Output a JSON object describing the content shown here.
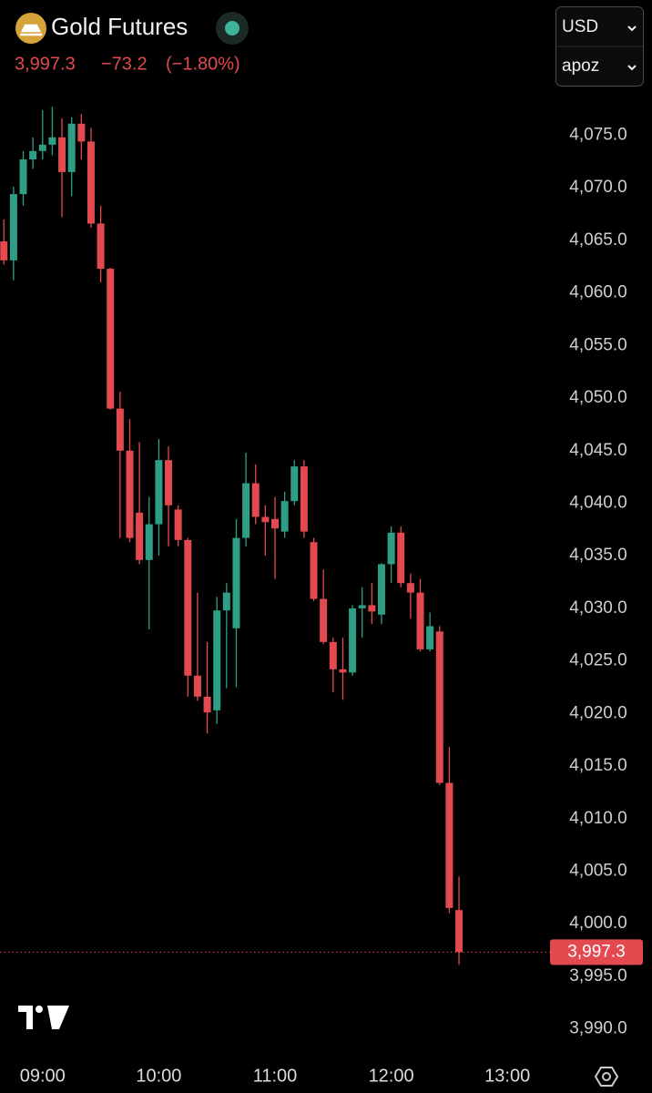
{
  "header": {
    "symbol": "Gold Futures",
    "price": "3,997.3",
    "change": "−73.2",
    "change_pct": "(−1.80%)",
    "currency": "USD",
    "unit": "apoz"
  },
  "chart_data": {
    "type": "candlestick",
    "x": [
      "08:40",
      "08:45",
      "08:50",
      "08:55",
      "09:00",
      "09:05",
      "09:10",
      "09:15",
      "09:20",
      "09:25",
      "09:30",
      "09:35",
      "09:40",
      "09:45",
      "09:50",
      "09:55",
      "10:00",
      "10:05",
      "10:10",
      "10:15",
      "10:20",
      "10:25",
      "10:30",
      "10:35",
      "10:40",
      "10:45",
      "10:50",
      "10:55",
      "11:00",
      "11:05",
      "11:10",
      "11:15",
      "11:20",
      "11:25",
      "11:30",
      "11:35",
      "11:40",
      "11:45",
      "11:50",
      "11:55",
      "12:00",
      "12:05",
      "12:10",
      "12:15",
      "12:20",
      "12:25",
      "12:30",
      "12:35"
    ],
    "open": [
      4064.9,
      4063.1,
      4069.4,
      4072.7,
      4073.5,
      4074.1,
      4074.8,
      4071.5,
      4076.1,
      4074.4,
      4066.6,
      4062.3,
      4049.0,
      4045.0,
      4039.1,
      4034.6,
      4038.0,
      4044.1,
      4039.4,
      4036.5,
      4023.6,
      4021.6,
      4020.3,
      4029.8,
      4028.1,
      4036.7,
      4041.9,
      4038.7,
      4038.5,
      4037.3,
      4040.2,
      4043.5,
      4036.3,
      4030.9,
      4026.8,
      4024.2,
      4023.9,
      4030.0,
      4030.3,
      4029.4,
      4034.2,
      4037.2,
      4032.4,
      4031.5,
      4026.1,
      4027.8,
      4013.4,
      4001.3
    ],
    "high": [
      4067.0,
      4070.1,
      4073.5,
      4074.8,
      4077.4,
      4077.7,
      4076.6,
      4076.7,
      4077.0,
      4075.7,
      4068.3,
      4062.4,
      4050.6,
      4048.0,
      4045.8,
      4040.6,
      4046.1,
      4045.4,
      4039.8,
      4036.7,
      4031.5,
      4026.8,
      4031.1,
      4032.4,
      4038.5,
      4044.8,
      4043.7,
      4039.8,
      4040.6,
      4041.1,
      4044.1,
      4044.1,
      4036.7,
      4033.7,
      4027.2,
      4027.2,
      4030.3,
      4032.0,
      4032.4,
      4034.3,
      4037.8,
      4037.8,
      4033.3,
      4032.8,
      4029.6,
      4028.3,
      4016.8,
      4004.5
    ],
    "low": [
      4062.7,
      4061.2,
      4068.3,
      4071.8,
      4072.7,
      4073.1,
      4067.2,
      4069.2,
      4072.7,
      4066.2,
      4061.0,
      4048.9,
      4036.7,
      4036.3,
      4034.2,
      4028.0,
      4035.0,
      4035.9,
      4035.9,
      4021.6,
      4021.2,
      4018.1,
      4019.0,
      4022.4,
      4022.5,
      4035.9,
      4038.0,
      4035.0,
      4032.8,
      4036.7,
      4039.8,
      4036.7,
      4030.7,
      4026.6,
      4022.0,
      4021.3,
      4023.6,
      4027.2,
      4028.5,
      4028.5,
      4032.4,
      4032.0,
      4029.0,
      4025.9,
      4025.9,
      4013.2,
      4001.0,
      3996.1
    ],
    "close": [
      4063.1,
      4069.4,
      4072.7,
      4073.5,
      4074.1,
      4074.8,
      4071.5,
      4076.1,
      4074.4,
      4066.6,
      4062.3,
      4049.0,
      4045.0,
      4036.7,
      4034.6,
      4038.0,
      4044.1,
      4039.8,
      4036.5,
      4023.6,
      4021.6,
      4020.1,
      4029.8,
      4031.5,
      4036.7,
      4041.9,
      4038.7,
      4038.2,
      4037.6,
      4040.2,
      4043.5,
      4037.3,
      4030.9,
      4026.8,
      4024.2,
      4023.9,
      4030.0,
      4030.3,
      4029.7,
      4034.2,
      4037.2,
      4032.4,
      4031.5,
      4026.1,
      4028.3,
      4013.4,
      4001.5,
      3997.3
    ],
    "up_color": "#2f9e86",
    "down_color": "#e24a4f",
    "xlim": [
      "08:38",
      "13:22"
    ],
    "xticks": [
      "09:00",
      "10:00",
      "11:00",
      "12:00",
      "13:00"
    ],
    "ylim": [
      3987.8,
      4079.2
    ],
    "yticks": [
      {
        "value": 4075,
        "label": "4,075.0"
      },
      {
        "value": 4070,
        "label": "4,070.0"
      },
      {
        "value": 4065,
        "label": "4,065.0"
      },
      {
        "value": 4060,
        "label": "4,060.0"
      },
      {
        "value": 4055,
        "label": "4,055.0"
      },
      {
        "value": 4050,
        "label": "4,050.0"
      },
      {
        "value": 4045,
        "label": "4,045.0"
      },
      {
        "value": 4040,
        "label": "4,040.0"
      },
      {
        "value": 4035,
        "label": "4,035.0"
      },
      {
        "value": 4030,
        "label": "4,030.0"
      },
      {
        "value": 4025,
        "label": "4,025.0"
      },
      {
        "value": 4020,
        "label": "4,020.0"
      },
      {
        "value": 4015,
        "label": "4,015.0"
      },
      {
        "value": 4010,
        "label": "4,010.0"
      },
      {
        "value": 4005,
        "label": "4,005.0"
      },
      {
        "value": 4000,
        "label": "4,000.0"
      },
      {
        "value": 3995,
        "label": "3,995.0"
      },
      {
        "value": 3990,
        "label": "3,990.0"
      }
    ],
    "grid": false
  }
}
